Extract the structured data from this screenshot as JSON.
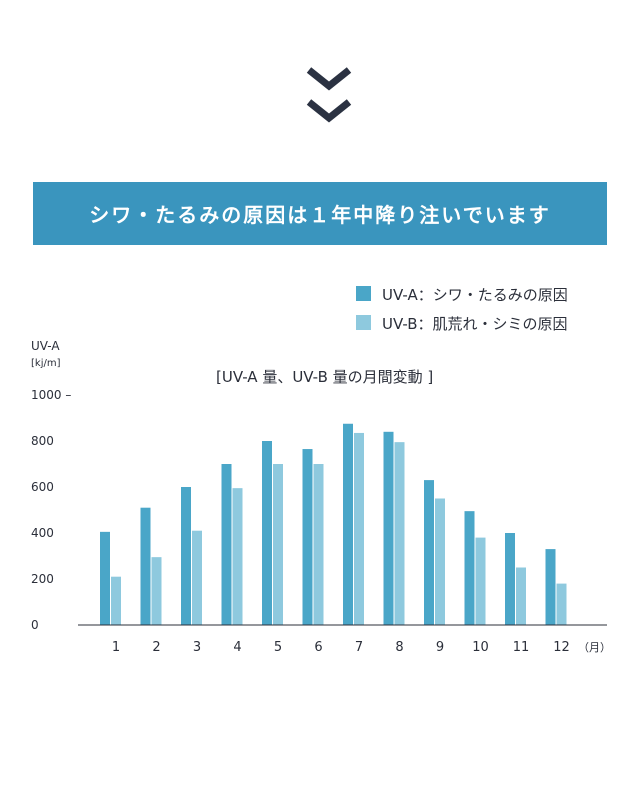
{
  "banner": {
    "title": "シワ・たるみの原因は１年中降り注いでいます"
  },
  "icons": {
    "down_chevron_1": "chevron-down-icon",
    "down_chevron_2": "chevron-down-icon"
  },
  "colors": {
    "banner": "#3a95be",
    "uva": "#4aa6c8",
    "uvb": "#8ec9de",
    "chevron": "#2b3242",
    "axis": "#2b2f3a"
  },
  "chart_data": {
    "type": "bar",
    "title": "[UV-A 量、UV-B 量の月間変動 ]",
    "ylabel": "UV-A",
    "yunit": "[kj/m]",
    "xunit": "（月）",
    "categories": [
      "1",
      "2",
      "3",
      "4",
      "5",
      "6",
      "7",
      "8",
      "9",
      "10",
      "11",
      "12"
    ],
    "series": [
      {
        "name": "UV-A：シワ・たるみの原因",
        "values": [
          405,
          510,
          600,
          700,
          800,
          765,
          875,
          840,
          630,
          495,
          400,
          330
        ]
      },
      {
        "name": "UV-B：肌荒れ・シミの原因",
        "values": [
          210,
          295,
          410,
          595,
          700,
          700,
          835,
          795,
          550,
          380,
          250,
          180
        ]
      }
    ],
    "yticks": [
      "0",
      "200",
      "400",
      "600",
      "800",
      "1000 –"
    ],
    "ylim": [
      0,
      1000
    ],
    "legend_position": "top-right",
    "grid": false
  }
}
